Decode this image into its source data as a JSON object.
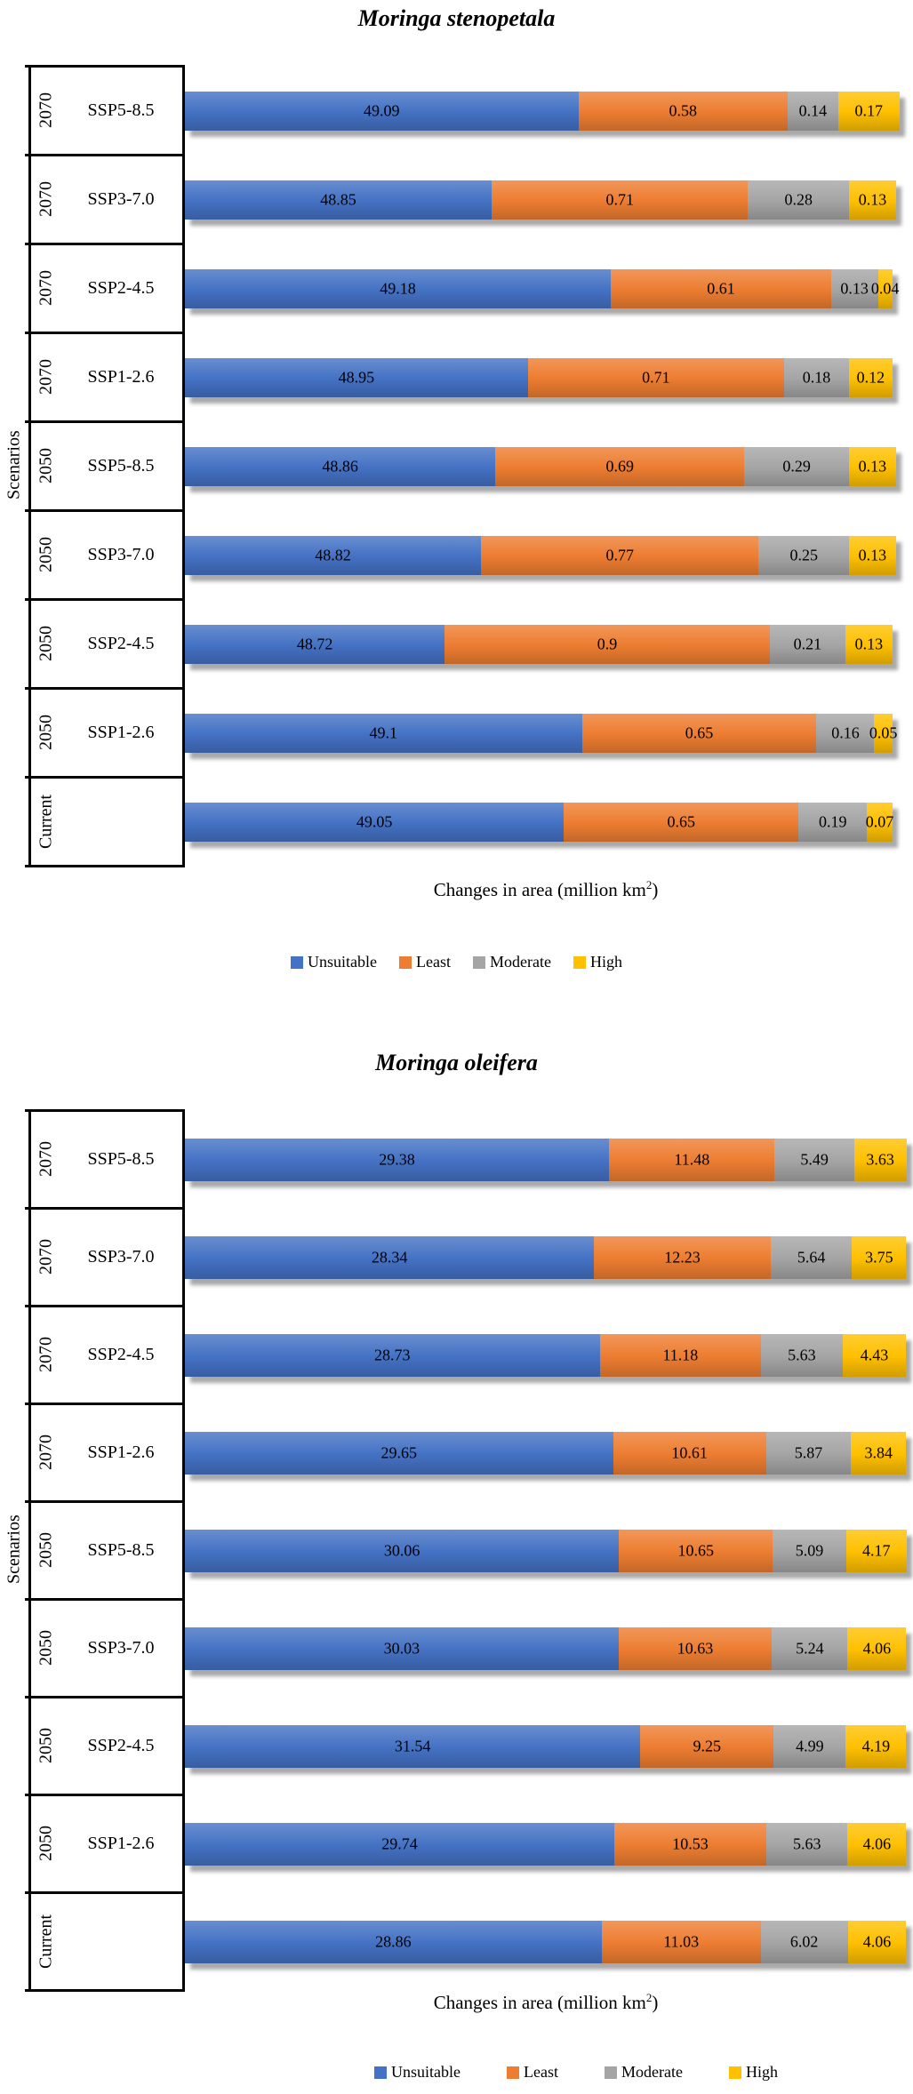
{
  "figure": {
    "background": "#ffffff",
    "series_colors": [
      "#4472C4",
      "#ED7D31",
      "#A5A5A5",
      "#FFC000"
    ]
  },
  "chart_data": [
    {
      "type": "bar",
      "orientation": "horizontal-stacked",
      "title": "Moringa stenopetala",
      "xlabel": "Changes in area (million km²)",
      "ylabel": "Scenarios",
      "xlim": [
        48,
        50
      ],
      "grid": false,
      "legend_position": "bottom",
      "legend": [
        "Unsuitable",
        "Least",
        "Moderate",
        "High"
      ],
      "colors": [
        "#4472C4",
        "#ED7D31",
        "#A5A5A5",
        "#FFC000"
      ],
      "categories": [
        {
          "year": "2070",
          "scenario": "SSP5-8.5"
        },
        {
          "year": "2070",
          "scenario": "SSP3-7.0"
        },
        {
          "year": "2070",
          "scenario": "SSP2-4.5"
        },
        {
          "year": "2070",
          "scenario": "SSP1-2.6"
        },
        {
          "year": "2050",
          "scenario": "SSP5-8.5"
        },
        {
          "year": "2050",
          "scenario": "SSP3-7.0"
        },
        {
          "year": "2050",
          "scenario": "SSP2-4.5"
        },
        {
          "year": "2050",
          "scenario": "SSP1-2.6"
        },
        {
          "year": "Current",
          "scenario": ""
        }
      ],
      "series": [
        {
          "name": "Unsuitable",
          "values": [
            49.09,
            48.85,
            49.18,
            48.95,
            48.86,
            48.82,
            48.72,
            49.1,
            49.05
          ]
        },
        {
          "name": "Least",
          "values": [
            0.58,
            0.71,
            0.61,
            0.71,
            0.69,
            0.77,
            0.9,
            0.65,
            0.65
          ]
        },
        {
          "name": "Moderate",
          "values": [
            0.14,
            0.28,
            0.13,
            0.18,
            0.29,
            0.25,
            0.21,
            0.16,
            0.19
          ]
        },
        {
          "name": "High",
          "values": [
            0.17,
            0.13,
            0.04,
            0.12,
            0.13,
            0.13,
            0.13,
            0.05,
            0.07
          ]
        }
      ]
    },
    {
      "type": "bar",
      "orientation": "horizontal-stacked",
      "title": "Moringa oleifera",
      "xlabel": "Changes in area (million km²)",
      "ylabel": "Scenarios",
      "xlim": [
        0,
        50
      ],
      "grid": false,
      "legend_position": "bottom",
      "legend": [
        "Unsuitable",
        "Least",
        "Moderate",
        "High"
      ],
      "colors": [
        "#4472C4",
        "#ED7D31",
        "#A5A5A5",
        "#FFC000"
      ],
      "categories": [
        {
          "year": "2070",
          "scenario": "SSP5-8.5"
        },
        {
          "year": "2070",
          "scenario": "SSP3-7.0"
        },
        {
          "year": "2070",
          "scenario": "SSP2-4.5"
        },
        {
          "year": "2070",
          "scenario": "SSP1-2.6"
        },
        {
          "year": "2050",
          "scenario": "SSP5-8.5"
        },
        {
          "year": "2050",
          "scenario": "SSP3-7.0"
        },
        {
          "year": "2050",
          "scenario": "SSP2-4.5"
        },
        {
          "year": "2050",
          "scenario": "SSP1-2.6"
        },
        {
          "year": "Current",
          "scenario": ""
        }
      ],
      "series": [
        {
          "name": "Unsuitable",
          "values": [
            29.38,
            28.34,
            28.73,
            29.65,
            30.06,
            30.03,
            31.54,
            29.74,
            28.86
          ]
        },
        {
          "name": "Least",
          "values": [
            11.48,
            12.23,
            11.18,
            10.61,
            10.65,
            10.63,
            9.25,
            10.53,
            11.03
          ]
        },
        {
          "name": "Moderate",
          "values": [
            5.49,
            5.64,
            5.63,
            5.87,
            5.09,
            5.24,
            4.99,
            5.63,
            6.02
          ]
        },
        {
          "name": "High",
          "values": [
            3.63,
            3.75,
            4.43,
            3.84,
            4.17,
            4.06,
            4.19,
            4.06,
            4.06
          ]
        }
      ]
    }
  ]
}
